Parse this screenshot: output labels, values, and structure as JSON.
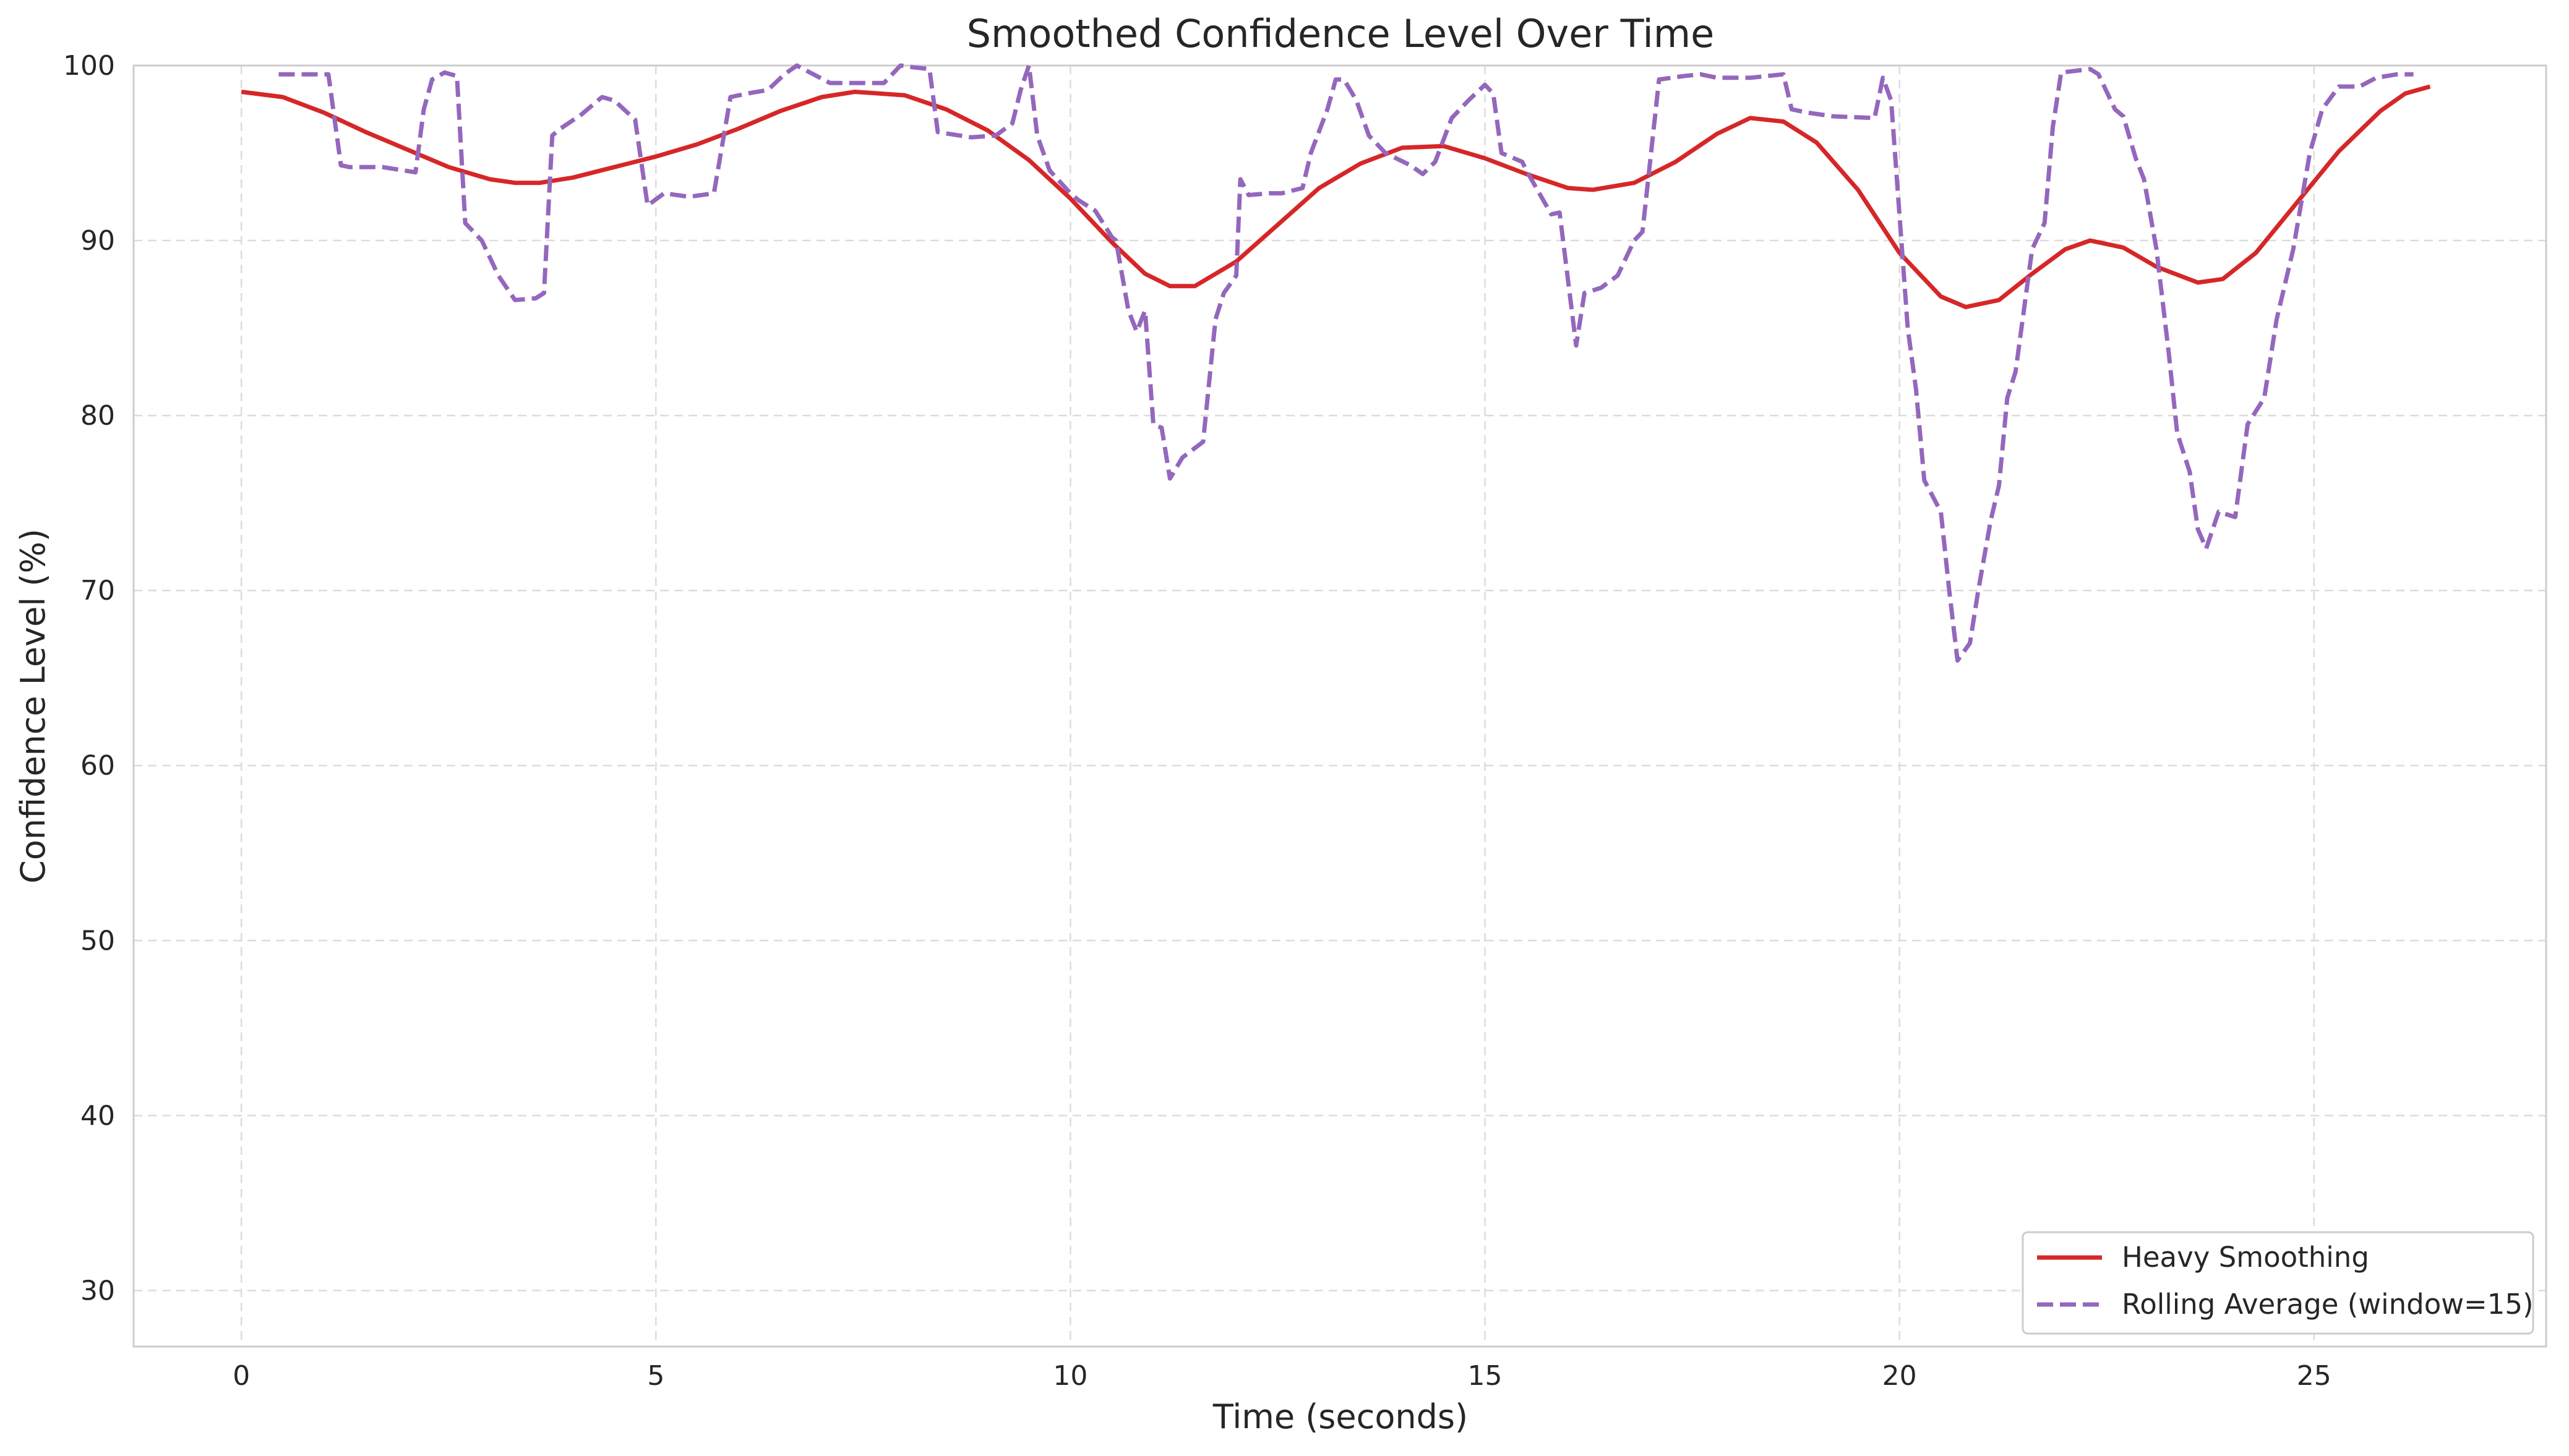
{
  "chart_data": {
    "type": "line",
    "title": "Smoothed Confidence Level Over Time",
    "xlabel": "Time (seconds)",
    "ylabel": "Confidence Level (%)",
    "xlim": [
      -1.3,
      27.8
    ],
    "ylim": [
      26.8,
      100
    ],
    "xticks": [
      0,
      5,
      10,
      15,
      20,
      25
    ],
    "yticks": [
      30,
      40,
      50,
      60,
      70,
      80,
      90,
      100
    ],
    "grid": true,
    "legend_position": "bottom-right",
    "colors": {
      "grid": "#dcdcdc",
      "axes": "#cccccc",
      "text": "#262626"
    },
    "series": [
      {
        "name": "Heavy Smoothing",
        "color": "#d62728",
        "style": "solid",
        "points": [
          [
            0,
            98.5
          ],
          [
            0.5,
            98.2
          ],
          [
            1,
            97.3
          ],
          [
            1.5,
            96.2
          ],
          [
            2,
            95.2
          ],
          [
            2.5,
            94.2
          ],
          [
            3,
            93.5
          ],
          [
            3.3,
            93.3
          ],
          [
            3.6,
            93.3
          ],
          [
            4,
            93.6
          ],
          [
            4.5,
            94.2
          ],
          [
            5,
            94.8
          ],
          [
            5.5,
            95.5
          ],
          [
            6,
            96.4
          ],
          [
            6.5,
            97.4
          ],
          [
            7,
            98.2
          ],
          [
            7.4,
            98.5
          ],
          [
            8,
            98.3
          ],
          [
            8.5,
            97.5
          ],
          [
            9,
            96.3
          ],
          [
            9.5,
            94.6
          ],
          [
            10,
            92.4
          ],
          [
            10.5,
            89.9
          ],
          [
            10.9,
            88.1
          ],
          [
            11.2,
            87.4
          ],
          [
            11.5,
            87.4
          ],
          [
            12,
            88.8
          ],
          [
            12.5,
            90.9
          ],
          [
            13,
            93
          ],
          [
            13.5,
            94.4
          ],
          [
            14,
            95.3
          ],
          [
            14.5,
            95.4
          ],
          [
            15,
            94.7
          ],
          [
            15.5,
            93.8
          ],
          [
            16,
            93
          ],
          [
            16.3,
            92.9
          ],
          [
            16.8,
            93.3
          ],
          [
            17.3,
            94.5
          ],
          [
            17.8,
            96.1
          ],
          [
            18.2,
            97
          ],
          [
            18.6,
            96.8
          ],
          [
            19,
            95.6
          ],
          [
            19.5,
            92.9
          ],
          [
            20,
            89.3
          ],
          [
            20.5,
            86.8
          ],
          [
            20.8,
            86.2
          ],
          [
            21.2,
            86.6
          ],
          [
            21.6,
            88.1
          ],
          [
            22,
            89.5
          ],
          [
            22.3,
            90
          ],
          [
            22.7,
            89.6
          ],
          [
            23.1,
            88.5
          ],
          [
            23.6,
            87.6
          ],
          [
            23.9,
            87.8
          ],
          [
            24.3,
            89.3
          ],
          [
            24.8,
            92.2
          ],
          [
            25.3,
            95.1
          ],
          [
            25.8,
            97.4
          ],
          [
            26.1,
            98.4
          ],
          [
            26.4,
            98.8
          ]
        ]
      },
      {
        "name": "Rolling Average (window=15)",
        "color": "#9467bd",
        "style": "dashed",
        "points": [
          [
            0.45,
            99.5
          ],
          [
            1.05,
            99.5
          ],
          [
            1.2,
            94.3
          ],
          [
            1.3,
            94.2
          ],
          [
            1.7,
            94.2
          ],
          [
            2.1,
            93.9
          ],
          [
            2.2,
            97.5
          ],
          [
            2.3,
            99.2
          ],
          [
            2.45,
            99.6
          ],
          [
            2.6,
            99.4
          ],
          [
            2.7,
            91
          ],
          [
            2.9,
            90
          ],
          [
            3.1,
            88
          ],
          [
            3.3,
            86.6
          ],
          [
            3.55,
            86.7
          ],
          [
            3.65,
            87
          ],
          [
            3.75,
            96
          ],
          [
            3.85,
            96.4
          ],
          [
            4.1,
            97.2
          ],
          [
            4.35,
            98.2
          ],
          [
            4.5,
            98
          ],
          [
            4.75,
            96.9
          ],
          [
            4.9,
            92
          ],
          [
            5.1,
            92.7
          ],
          [
            5.4,
            92.5
          ],
          [
            5.7,
            92.7
          ],
          [
            5.9,
            98.2
          ],
          [
            6.1,
            98.4
          ],
          [
            6.35,
            98.6
          ],
          [
            6.55,
            99.5
          ],
          [
            6.7,
            100
          ],
          [
            6.9,
            99.5
          ],
          [
            7.1,
            99
          ],
          [
            7.6,
            99
          ],
          [
            7.75,
            99
          ],
          [
            7.95,
            100
          ],
          [
            8.1,
            99.9
          ],
          [
            8.3,
            99.8
          ],
          [
            8.4,
            96.2
          ],
          [
            8.8,
            95.9
          ],
          [
            9.1,
            96
          ],
          [
            9.3,
            96.7
          ],
          [
            9.4,
            98.6
          ],
          [
            9.5,
            100
          ],
          [
            9.6,
            96
          ],
          [
            9.75,
            94
          ],
          [
            10,
            92.7
          ],
          [
            10.1,
            92.3
          ],
          [
            10.3,
            91.7
          ],
          [
            10.5,
            90.2
          ],
          [
            10.55,
            90
          ],
          [
            10.7,
            86
          ],
          [
            10.8,
            84.8
          ],
          [
            10.9,
            86
          ],
          [
            11,
            79.5
          ],
          [
            11.1,
            79.3
          ],
          [
            11.2,
            76.4
          ],
          [
            11.35,
            77.6
          ],
          [
            11.6,
            78.5
          ],
          [
            11.75,
            85.5
          ],
          [
            11.85,
            87
          ],
          [
            12,
            88
          ],
          [
            12.05,
            93.5
          ],
          [
            12.15,
            92.6
          ],
          [
            12.4,
            92.7
          ],
          [
            12.55,
            92.7
          ],
          [
            12.8,
            93
          ],
          [
            12.9,
            95
          ],
          [
            13.1,
            97.5
          ],
          [
            13.2,
            99.2
          ],
          [
            13.3,
            99.2
          ],
          [
            13.45,
            98
          ],
          [
            13.6,
            96
          ],
          [
            13.8,
            95
          ],
          [
            14.1,
            94.3
          ],
          [
            14.25,
            93.8
          ],
          [
            14.4,
            94.5
          ],
          [
            14.6,
            97
          ],
          [
            14.8,
            98
          ],
          [
            15,
            98.9
          ],
          [
            15.1,
            98.4
          ],
          [
            15.2,
            95
          ],
          [
            15.45,
            94.5
          ],
          [
            15.5,
            94
          ],
          [
            15.8,
            91.5
          ],
          [
            15.9,
            91.6
          ],
          [
            16.1,
            84
          ],
          [
            16.2,
            87
          ],
          [
            16.4,
            87.3
          ],
          [
            16.6,
            88
          ],
          [
            16.8,
            90
          ],
          [
            16.9,
            90.5
          ],
          [
            17.1,
            99.2
          ],
          [
            17.4,
            99.4
          ],
          [
            17.6,
            99.5
          ],
          [
            17.8,
            99.3
          ],
          [
            18.2,
            99.3
          ],
          [
            18.6,
            99.5
          ],
          [
            18.7,
            97.5
          ],
          [
            18.9,
            97.3
          ],
          [
            19.2,
            97.1
          ],
          [
            19.7,
            97
          ],
          [
            19.8,
            99.3
          ],
          [
            19.9,
            98
          ],
          [
            20.1,
            85
          ],
          [
            20.2,
            81.5
          ],
          [
            20.3,
            76.3
          ],
          [
            20.5,
            74.5
          ],
          [
            20.6,
            70
          ],
          [
            20.7,
            66
          ],
          [
            20.85,
            67
          ],
          [
            20.95,
            70
          ],
          [
            21.1,
            74
          ],
          [
            21.2,
            76
          ],
          [
            21.3,
            81
          ],
          [
            21.4,
            82.5
          ],
          [
            21.6,
            89.5
          ],
          [
            21.75,
            91
          ],
          [
            21.85,
            96.5
          ],
          [
            21.95,
            99.6
          ],
          [
            22.3,
            99.8
          ],
          [
            22.4,
            99.5
          ],
          [
            22.6,
            97.5
          ],
          [
            22.7,
            97.1
          ],
          [
            22.85,
            94.7
          ],
          [
            22.95,
            93.5
          ],
          [
            23.1,
            89.5
          ],
          [
            23.25,
            83.5
          ],
          [
            23.35,
            79
          ],
          [
            23.5,
            76.8
          ],
          [
            23.6,
            73.5
          ],
          [
            23.7,
            72.4
          ],
          [
            23.85,
            74.5
          ],
          [
            24.05,
            74.2
          ],
          [
            24.2,
            79.5
          ],
          [
            24.4,
            81
          ],
          [
            24.55,
            85.5
          ],
          [
            24.75,
            89.5
          ],
          [
            24.95,
            95
          ],
          [
            25.1,
            97.5
          ],
          [
            25.3,
            98.8
          ],
          [
            25.55,
            98.8
          ],
          [
            25.75,
            99.3
          ],
          [
            26,
            99.5
          ],
          [
            26.2,
            99.5
          ]
        ]
      }
    ]
  }
}
